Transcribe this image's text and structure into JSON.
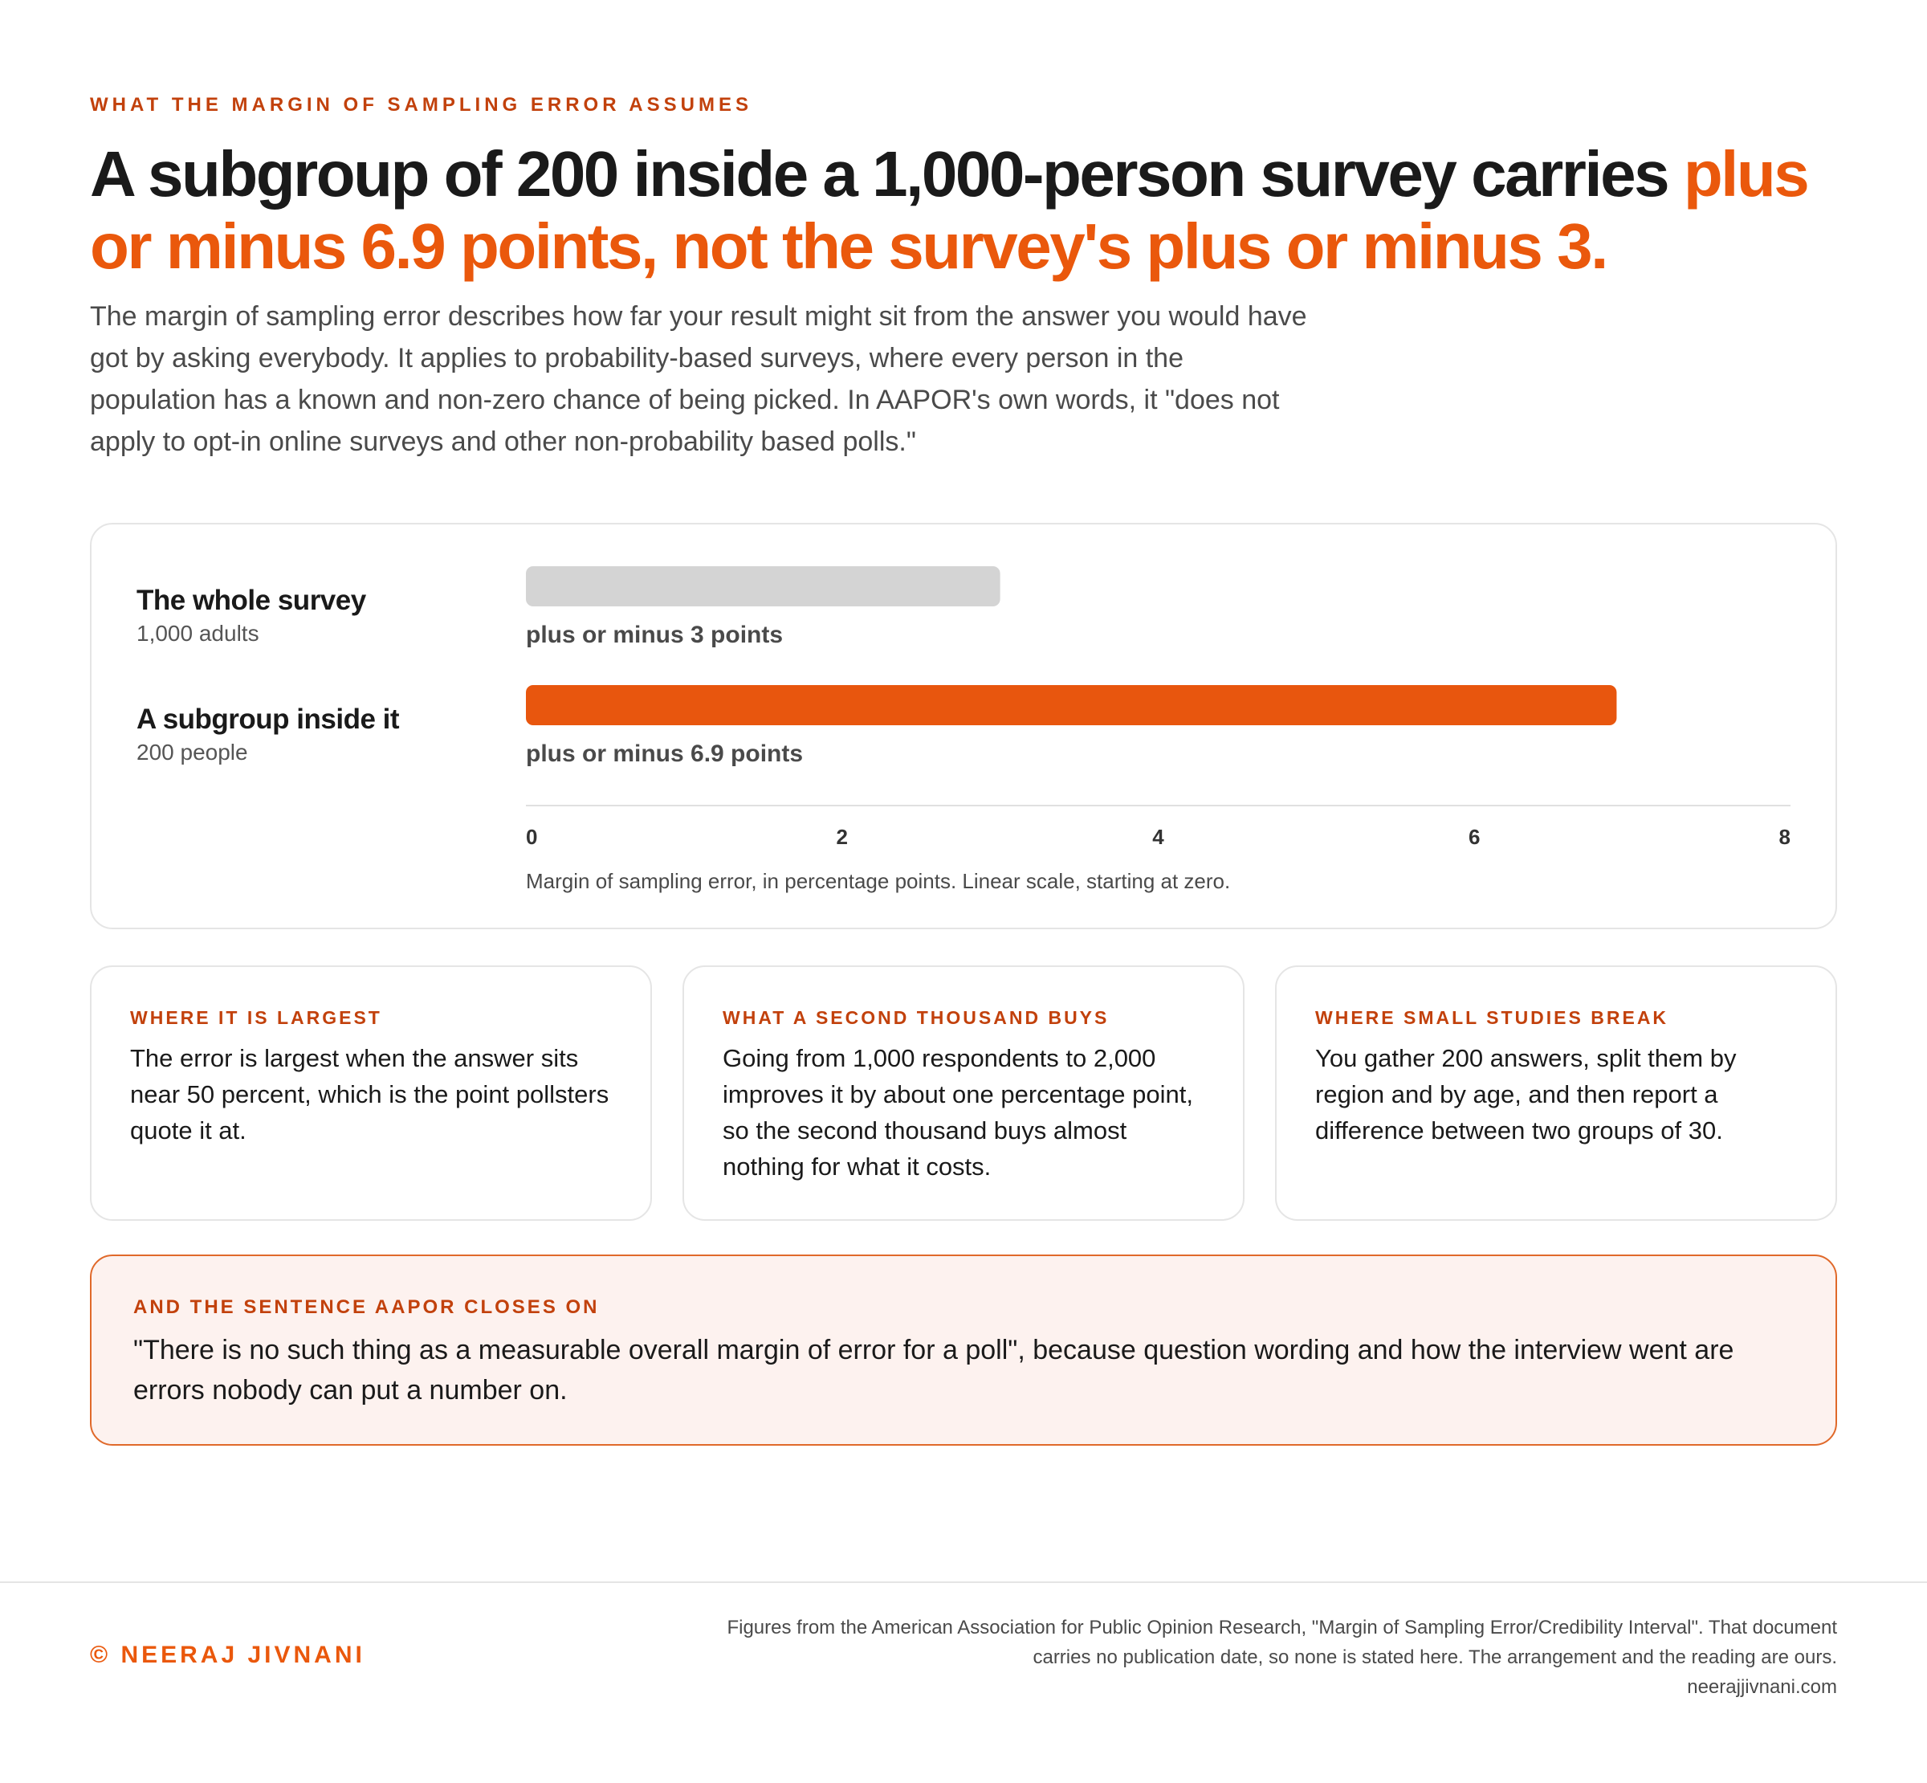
{
  "eyebrow": "WHAT THE MARGIN OF SAMPLING ERROR ASSUMES",
  "headline": {
    "lead": "A subgroup of 200 inside a 1,000-person survey carries ",
    "accent": "plus or minus 6.9 points, not the survey's plus or minus 3."
  },
  "lede": "The margin of sampling error describes how far your result might sit from the answer you would have got by asking everybody. It applies to probability-based surveys, where every person in the population has a known and non-zero chance of being picked. In AAPOR's own words, it \"does not apply to opt-in online surveys and other non-probability based polls.\"",
  "chart_data": {
    "type": "bar",
    "orientation": "horizontal",
    "categories": [
      "The whole survey",
      "A subgroup inside it"
    ],
    "category_subtitles": [
      "1,000 adults",
      "200 people"
    ],
    "values": [
      3,
      6.9
    ],
    "value_labels": [
      "plus or minus 3 points",
      "plus or minus 6.9 points"
    ],
    "bar_colors": [
      "#d4d4d4",
      "#e8560e"
    ],
    "xlim": [
      0,
      8
    ],
    "xticks": [
      "0",
      "2",
      "4",
      "6",
      "8"
    ],
    "xticks_values": [
      0,
      2,
      4,
      6,
      8
    ],
    "xlabel": "Margin of sampling error, in percentage points. Linear scale, starting at zero.",
    "grid": false
  },
  "cards": [
    {
      "label": "WHERE IT IS LARGEST",
      "body": "The error is largest when the answer sits near 50 percent, which is the point pollsters quote it at."
    },
    {
      "label": "WHAT A SECOND THOUSAND BUYS",
      "body": "Going from 1,000 respondents to 2,000 improves it by about one percentage point, so the second thousand buys almost nothing for what it costs."
    },
    {
      "label": "WHERE SMALL STUDIES BREAK",
      "body": "You gather 200 answers, split them by region and by age, and then report a difference between two groups of 30."
    }
  ],
  "callout": {
    "label": "AND THE SENTENCE AAPOR CLOSES ON",
    "body": "\"There is no such thing as a measurable overall margin of error for a poll\", because question wording and how the interview went are errors nobody can put a number on."
  },
  "footer": {
    "brand": "© NEERAJ JIVNANI",
    "source": "Figures from the American Association for Public Opinion Research, \"Margin of Sampling Error/Credibility Interval\". That document carries no publication date, so none is stated here. The arrangement and the reading are ours.",
    "site": "neerajjivnani.com"
  },
  "colors": {
    "accent": "#ea580c",
    "accent_dark": "#c2410c",
    "muted_bar": "#d4d4d4",
    "callout_bg": "#fdf2ef"
  }
}
